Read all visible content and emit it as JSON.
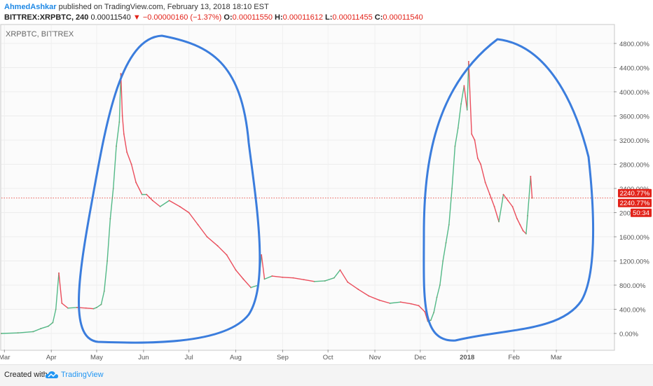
{
  "header": {
    "author": "AhmedAshkar",
    "published": "published on TradingView.com, February 13, 2018 18:10 EST",
    "symbol": "BITTREX:XRPBTC, 240",
    "last": "0.00011540",
    "change": "−0.00000160 (−1.37%)",
    "o_label": "O:",
    "o_value": "0.00011550",
    "h_label": "H:",
    "h_value": "0.00011612",
    "l_label": "L:",
    "l_value": "0.00011455",
    "c_label": "C:",
    "c_value": "0.00011540"
  },
  "footer": {
    "created": "Created with",
    "brand": "TradingView"
  },
  "colors": {
    "up": "#53b987",
    "down": "#eb4d5c",
    "annotation": "#3b7ddd",
    "price_line": "#e2231a",
    "accent": "#2196f3"
  },
  "chart_data": {
    "type": "line",
    "watermark": "XRPBTC, BITTREX",
    "y_unit": "%",
    "ylim": [
      -200,
      5000
    ],
    "y_ticks": [
      "0.00%",
      "400.00%",
      "800.00%",
      "1200.00%",
      "1600.00%",
      "2000.00%",
      "2400.00%",
      "2800.00%",
      "3200.00%",
      "3600.00%",
      "4000.00%",
      "4400.00%",
      "4800.00%"
    ],
    "x_ticks": [
      "Mar",
      "Apr",
      "May",
      "Jun",
      "Jul",
      "Aug",
      "Sep",
      "Oct",
      "Nov",
      "Dec",
      "2018",
      "Feb",
      "Mar"
    ],
    "price_labels": [
      "2240.77%",
      "2240.77%",
      "50:34"
    ],
    "series": [
      {
        "x": [
          "2017-02-27",
          "2017-03-10",
          "2017-03-20",
          "2017-03-25",
          "2017-03-30",
          "2017-04-02",
          "2017-04-04",
          "2017-04-06",
          "2017-04-08",
          "2017-04-12",
          "2017-04-18",
          "2017-04-24",
          "2017-04-29",
          "2017-05-01",
          "2017-05-04",
          "2017-05-06",
          "2017-05-08",
          "2017-05-10",
          "2017-05-12",
          "2017-05-14",
          "2017-05-16",
          "2017-05-17",
          "2017-05-18",
          "2017-05-19",
          "2017-05-21",
          "2017-05-24",
          "2017-05-27",
          "2017-05-31",
          "2017-06-03",
          "2017-06-07",
          "2017-06-12",
          "2017-06-18",
          "2017-06-25",
          "2017-07-01",
          "2017-07-07",
          "2017-07-13",
          "2017-07-20",
          "2017-07-26",
          "2017-08-01",
          "2017-08-06",
          "2017-08-11",
          "2017-08-16",
          "2017-08-18",
          "2017-08-20",
          "2017-08-25",
          "2017-09-01",
          "2017-09-08",
          "2017-09-15",
          "2017-09-22",
          "2017-09-29",
          "2017-10-05",
          "2017-10-09",
          "2017-10-14",
          "2017-10-21",
          "2017-10-28",
          "2017-11-04",
          "2017-11-11",
          "2017-11-18",
          "2017-11-25",
          "2017-11-30",
          "2017-12-04",
          "2017-12-06",
          "2017-12-08",
          "2017-12-10",
          "2017-12-12",
          "2017-12-14",
          "2017-12-16",
          "2017-12-18",
          "2017-12-20",
          "2017-12-22",
          "2017-12-24",
          "2017-12-26",
          "2017-12-28",
          "2017-12-30",
          "2018-01-01",
          "2018-01-02",
          "2018-01-04",
          "2018-01-06",
          "2018-01-08",
          "2018-01-10",
          "2018-01-13",
          "2018-01-16",
          "2018-01-19",
          "2018-01-22",
          "2018-01-25",
          "2018-01-28",
          "2018-01-31",
          "2018-02-03",
          "2018-02-05",
          "2018-02-07",
          "2018-02-09",
          "2018-02-10",
          "2018-02-12",
          "2018-02-13"
        ],
        "y": [
          0,
          10,
          30,
          80,
          120,
          180,
          400,
          1000,
          500,
          420,
          430,
          420,
          410,
          430,
          480,
          700,
          1200,
          1900,
          2400,
          3100,
          3500,
          4300,
          3600,
          3300,
          3000,
          2800,
          2500,
          2300,
          2300,
          2200,
          2100,
          2200,
          2100,
          2000,
          1800,
          1600,
          1450,
          1300,
          1050,
          900,
          760,
          800,
          1300,
          900,
          950,
          930,
          920,
          890,
          860,
          870,
          920,
          1050,
          850,
          730,
          620,
          550,
          500,
          520,
          490,
          460,
          360,
          200,
          220,
          350,
          600,
          800,
          1200,
          1500,
          1800,
          2400,
          3100,
          3400,
          3800,
          4100,
          3700,
          4500,
          3300,
          3200,
          2900,
          2800,
          2500,
          2300,
          2100,
          1850,
          2300,
          2200,
          2100,
          1900,
          1800,
          1700,
          1650,
          1950,
          2600,
          2241
        ]
      }
    ]
  },
  "annotations": [
    {
      "type": "hand-drawn ellipse",
      "around": "May 2017 rally"
    },
    {
      "type": "hand-drawn ellipse",
      "around": "Dec 2017 - Feb 2018 rally"
    }
  ]
}
